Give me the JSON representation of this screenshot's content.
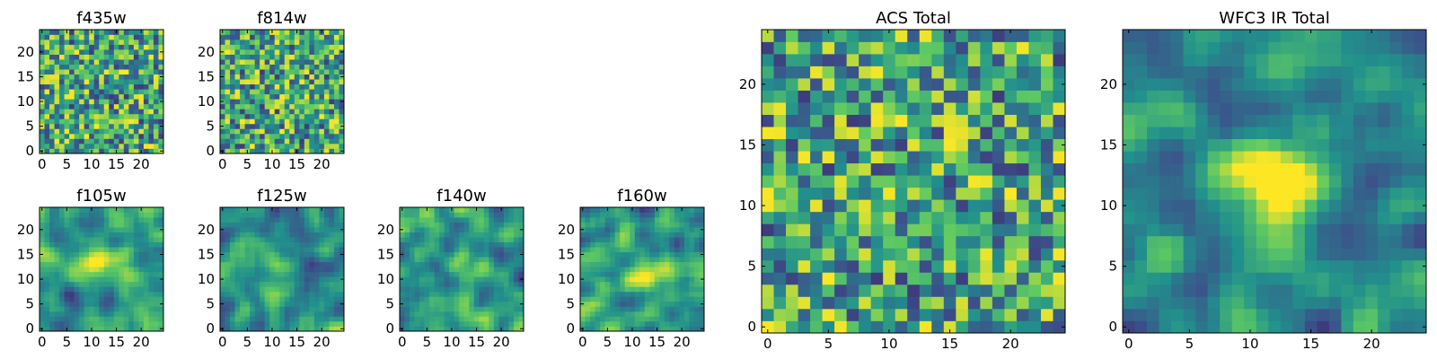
{
  "figure": {
    "background": "#ffffff"
  },
  "chart_data": {
    "type": "heatmap",
    "colormap": [
      "#440154",
      "#3b528b",
      "#21918c",
      "#5ec962",
      "#fde725"
    ],
    "grid_size": [
      25,
      25
    ],
    "pixel_values": "random noise (viridis), not individually readable",
    "panels": [
      {
        "title": "f435w",
        "xticks": [
          "0",
          "5",
          "10",
          "15",
          "20"
        ],
        "yticks": [
          "0",
          "5",
          "10",
          "15",
          "20"
        ],
        "texture": "noise",
        "smooth": false,
        "center_blob": 0
      },
      {
        "title": "f814w",
        "xticks": [
          "0",
          "5",
          "10",
          "15",
          "20"
        ],
        "yticks": [
          "0",
          "5",
          "10",
          "15",
          "20"
        ],
        "texture": "noise",
        "smooth": false,
        "center_blob": 0
      },
      {
        "title": "f105w",
        "xticks": [
          "0",
          "5",
          "10",
          "15",
          "20"
        ],
        "yticks": [
          "0",
          "5",
          "10",
          "15",
          "20"
        ],
        "texture": "smooth",
        "smooth": true,
        "center_blob": 0.25
      },
      {
        "title": "f125w",
        "xticks": [
          "0",
          "5",
          "10",
          "15",
          "20"
        ],
        "yticks": [
          "0",
          "5",
          "10",
          "15",
          "20"
        ],
        "texture": "smooth",
        "smooth": true,
        "center_blob": 0.3
      },
      {
        "title": "f140w",
        "xticks": [
          "0",
          "5",
          "10",
          "15",
          "20"
        ],
        "yticks": [
          "0",
          "5",
          "10",
          "15",
          "20"
        ],
        "texture": "smooth",
        "smooth": true,
        "center_blob": 0.45
      },
      {
        "title": "f160w",
        "xticks": [
          "0",
          "5",
          "10",
          "15",
          "20"
        ],
        "yticks": [
          "0",
          "5",
          "10",
          "15",
          "20"
        ],
        "texture": "smooth",
        "smooth": true,
        "center_blob": 0.45
      },
      {
        "title": "ACS Total",
        "xticks": [
          "0",
          "5",
          "10",
          "15",
          "20"
        ],
        "yticks": [
          "0",
          "5",
          "10",
          "15",
          "20"
        ],
        "texture": "noise",
        "smooth": false,
        "center_blob": 0
      },
      {
        "title": "WFC3 IR Total",
        "xticks": [
          "0",
          "5",
          "10",
          "15",
          "20"
        ],
        "yticks": [
          "0",
          "5",
          "10",
          "15",
          "20"
        ],
        "texture": "smooth",
        "smooth": true,
        "center_blob": 0.8
      }
    ]
  }
}
